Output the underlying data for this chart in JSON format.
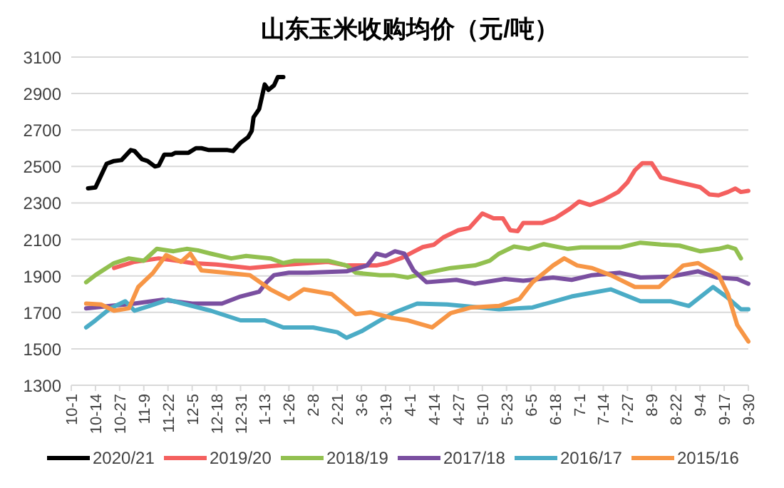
{
  "chart_data": {
    "type": "line",
    "title": "山东玉米收购均价（元/吨）",
    "xlim": [
      "2020-10-01",
      "2021-09-30"
    ],
    "xticks": [
      {
        "value": "2020-10-01",
        "label": "10-1"
      },
      {
        "value": "2020-10-14",
        "label": "10-14"
      },
      {
        "value": "2020-10-27",
        "label": "10-27"
      },
      {
        "value": "2020-11-09",
        "label": "11-9"
      },
      {
        "value": "2020-11-22",
        "label": "11-22"
      },
      {
        "value": "2020-12-05",
        "label": "12-5"
      },
      {
        "value": "2020-12-18",
        "label": "12-18"
      },
      {
        "value": "2020-12-31",
        "label": "12-31"
      },
      {
        "value": "2021-01-13",
        "label": "1-13"
      },
      {
        "value": "2021-01-26",
        "label": "1-26"
      },
      {
        "value": "2021-02-08",
        "label": "2-8"
      },
      {
        "value": "2021-02-21",
        "label": "2-21"
      },
      {
        "value": "2021-03-06",
        "label": "3-6"
      },
      {
        "value": "2021-03-19",
        "label": "3-19"
      },
      {
        "value": "2021-04-01",
        "label": "4-1"
      },
      {
        "value": "2021-04-14",
        "label": "4-14"
      },
      {
        "value": "2021-04-27",
        "label": "4-27"
      },
      {
        "value": "2021-05-10",
        "label": "5-10"
      },
      {
        "value": "2021-05-23",
        "label": "5-23"
      },
      {
        "value": "2021-06-05",
        "label": "6-5"
      },
      {
        "value": "2021-06-18",
        "label": "6-18"
      },
      {
        "value": "2021-07-01",
        "label": "7-1"
      },
      {
        "value": "2021-07-14",
        "label": "7-14"
      },
      {
        "value": "2021-07-27",
        "label": "7-27"
      },
      {
        "value": "2021-08-09",
        "label": "8-9"
      },
      {
        "value": "2021-08-22",
        "label": "8-22"
      },
      {
        "value": "2021-09-04",
        "label": "9-4"
      },
      {
        "value": "2021-09-17",
        "label": "9-17"
      },
      {
        "value": "2021-09-30",
        "label": "9-30"
      }
    ],
    "ylim": [
      1300,
      3100
    ],
    "yticks": [
      1300,
      1500,
      1700,
      1900,
      2100,
      2300,
      2500,
      2700,
      2900,
      3100
    ],
    "grid": "y",
    "legend": "bottom",
    "series": [
      {
        "name": "2020/21",
        "color": "#000000",
        "x": [
          "2020-10-10",
          "2020-10-14",
          "2020-10-20",
          "2020-10-24",
          "2020-10-28",
          "2020-11-02",
          "2020-11-04",
          "2020-11-08",
          "2020-11-11",
          "2020-11-15",
          "2020-11-17",
          "2020-11-20",
          "2020-11-24",
          "2020-11-26",
          "2020-12-03",
          "2020-12-07",
          "2020-12-10",
          "2020-12-14",
          "2020-12-24",
          "2020-12-27",
          "2020-12-31",
          "2021-01-04",
          "2021-01-06",
          "2021-01-07",
          "2021-01-10",
          "2021-01-13",
          "2021-01-15",
          "2021-01-18",
          "2021-01-20",
          "2021-01-23"
        ],
        "values": [
          2380,
          2385,
          2515,
          2530,
          2535,
          2590,
          2585,
          2540,
          2530,
          2500,
          2505,
          2565,
          2565,
          2575,
          2575,
          2600,
          2600,
          2590,
          2590,
          2585,
          2630,
          2660,
          2695,
          2770,
          2815,
          2950,
          2920,
          2945,
          2990,
          2990
        ]
      },
      {
        "name": "2019/20",
        "color": "#f4605f",
        "x": [
          "2020-10-24",
          "2020-11-04",
          "2020-11-17",
          "2020-11-27",
          "2020-12-05",
          "2020-12-18",
          "2021-01-05",
          "2021-01-26",
          "2021-02-16",
          "2021-02-26",
          "2021-03-14",
          "2021-03-20",
          "2021-03-28",
          "2021-04-03",
          "2021-04-08",
          "2021-04-14",
          "2021-04-19",
          "2021-04-27",
          "2021-05-03",
          "2021-05-10",
          "2021-05-16",
          "2021-05-21",
          "2021-05-25",
          "2021-05-29",
          "2021-06-01",
          "2021-06-11",
          "2021-06-18",
          "2021-06-26",
          "2021-07-01",
          "2021-07-07",
          "2021-07-14",
          "2021-07-22",
          "2021-07-27",
          "2021-07-31",
          "2021-08-04",
          "2021-08-09",
          "2021-08-14",
          "2021-08-24",
          "2021-09-04",
          "2021-09-09",
          "2021-09-14",
          "2021-09-19",
          "2021-09-23",
          "2021-09-26",
          "2021-09-30"
        ],
        "values": [
          1943,
          1977,
          1996,
          1983,
          1970,
          1962,
          1943,
          1962,
          1977,
          1957,
          1957,
          1970,
          2000,
          2032,
          2058,
          2071,
          2111,
          2150,
          2163,
          2242,
          2216,
          2216,
          2150,
          2145,
          2190,
          2190,
          2216,
          2268,
          2308,
          2289,
          2316,
          2360,
          2413,
          2479,
          2518,
          2518,
          2439,
          2413,
          2387,
          2347,
          2342,
          2360,
          2379,
          2360,
          2366
        ]
      },
      {
        "name": "2018/19",
        "color": "#92c050",
        "x": [
          "2020-10-09",
          "2020-10-14",
          "2020-10-24",
          "2020-11-01",
          "2020-11-09",
          "2020-11-16",
          "2020-11-25",
          "2020-12-02",
          "2020-12-08",
          "2020-12-15",
          "2020-12-26",
          "2021-01-03",
          "2021-01-16",
          "2021-01-23",
          "2021-01-29",
          "2021-02-16",
          "2021-02-26",
          "2021-03-03",
          "2021-03-16",
          "2021-03-23",
          "2021-03-31",
          "2021-04-10",
          "2021-04-23",
          "2021-05-06",
          "2021-05-14",
          "2021-05-19",
          "2021-05-27",
          "2021-06-04",
          "2021-06-12",
          "2021-06-25",
          "2021-07-02",
          "2021-07-23",
          "2021-08-03",
          "2021-08-14",
          "2021-08-24",
          "2021-09-04",
          "2021-09-14",
          "2021-09-19",
          "2021-09-23",
          "2021-09-26"
        ],
        "values": [
          1865,
          1904,
          1970,
          1996,
          1983,
          2048,
          2035,
          2048,
          2040,
          2022,
          1996,
          2009,
          1996,
          1970,
          1983,
          1983,
          1957,
          1917,
          1904,
          1904,
          1891,
          1917,
          1943,
          1957,
          1983,
          2022,
          2061,
          2048,
          2074,
          2048,
          2056,
          2056,
          2082,
          2072,
          2066,
          2035,
          2048,
          2061,
          2048,
          1996
        ]
      },
      {
        "name": "2017/18",
        "color": "#7a4fa0",
        "x": [
          "2020-10-09",
          "2020-10-22",
          "2020-11-04",
          "2020-11-19",
          "2020-11-25",
          "2020-12-05",
          "2020-12-21",
          "2020-12-31",
          "2021-01-10",
          "2021-01-14",
          "2021-01-18",
          "2021-01-26",
          "2021-02-05",
          "2021-02-26",
          "2021-03-09",
          "2021-03-14",
          "2021-03-19",
          "2021-03-24",
          "2021-03-29",
          "2021-04-03",
          "2021-04-10",
          "2021-04-26",
          "2021-05-06",
          "2021-05-22",
          "2021-06-01",
          "2021-06-17",
          "2021-06-27",
          "2021-07-08",
          "2021-07-23",
          "2021-08-03",
          "2021-08-19",
          "2021-09-03",
          "2021-09-13",
          "2021-09-24",
          "2021-09-30"
        ],
        "values": [
          1722,
          1735,
          1748,
          1769,
          1761,
          1748,
          1748,
          1787,
          1813,
          1865,
          1904,
          1917,
          1917,
          1925,
          1957,
          2022,
          2009,
          2035,
          2022,
          1930,
          1865,
          1878,
          1857,
          1883,
          1873,
          1891,
          1878,
          1904,
          1917,
          1891,
          1896,
          1925,
          1891,
          1883,
          1857
        ]
      },
      {
        "name": "2016/17",
        "color": "#4bacc6",
        "x": [
          "2020-10-09",
          "2020-10-14",
          "2020-10-22",
          "2020-10-30",
          "2020-11-04",
          "2020-11-12",
          "2020-11-22",
          "2020-12-05",
          "2020-12-15",
          "2020-12-31",
          "2021-01-13",
          "2021-01-23",
          "2021-02-08",
          "2021-02-21",
          "2021-02-26",
          "2021-03-06",
          "2021-03-16",
          "2021-03-23",
          "2021-04-05",
          "2021-04-21",
          "2021-05-19",
          "2021-06-06",
          "2021-06-27",
          "2021-07-18",
          "2021-08-03",
          "2021-08-19",
          "2021-08-29",
          "2021-09-11",
          "2021-09-18",
          "2021-09-26",
          "2021-09-30"
        ],
        "values": [
          1617,
          1656,
          1722,
          1761,
          1709,
          1735,
          1769,
          1735,
          1709,
          1656,
          1656,
          1617,
          1617,
          1591,
          1560,
          1596,
          1656,
          1696,
          1748,
          1743,
          1717,
          1727,
          1787,
          1826,
          1761,
          1761,
          1735,
          1839,
          1787,
          1717,
          1717
        ]
      },
      {
        "name": "2015/16",
        "color": "#f79646",
        "x": [
          "2020-10-09",
          "2020-10-17",
          "2020-10-24",
          "2020-11-01",
          "2020-11-06",
          "2020-11-14",
          "2020-11-21",
          "2020-11-29",
          "2020-12-04",
          "2020-12-10",
          "2020-12-23",
          "2021-01-05",
          "2021-01-16",
          "2021-01-26",
          "2021-02-03",
          "2021-02-18",
          "2021-03-03",
          "2021-03-11",
          "2021-03-22",
          "2021-03-31",
          "2021-04-13",
          "2021-04-23",
          "2021-05-04",
          "2021-05-19",
          "2021-05-30",
          "2021-06-06",
          "2021-06-17",
          "2021-06-23",
          "2021-06-30",
          "2021-07-08",
          "2021-07-18",
          "2021-07-31",
          "2021-08-13",
          "2021-08-26",
          "2021-09-03",
          "2021-09-14",
          "2021-09-19",
          "2021-09-24",
          "2021-09-30"
        ],
        "values": [
          1748,
          1743,
          1709,
          1722,
          1839,
          1917,
          2014,
          1977,
          2022,
          1930,
          1917,
          1904,
          1826,
          1774,
          1826,
          1800,
          1690,
          1700,
          1670,
          1656,
          1617,
          1696,
          1727,
          1735,
          1774,
          1865,
          1957,
          1996,
          1957,
          1943,
          1904,
          1839,
          1839,
          1957,
          1970,
          1904,
          1800,
          1631,
          1540
        ]
      }
    ]
  }
}
